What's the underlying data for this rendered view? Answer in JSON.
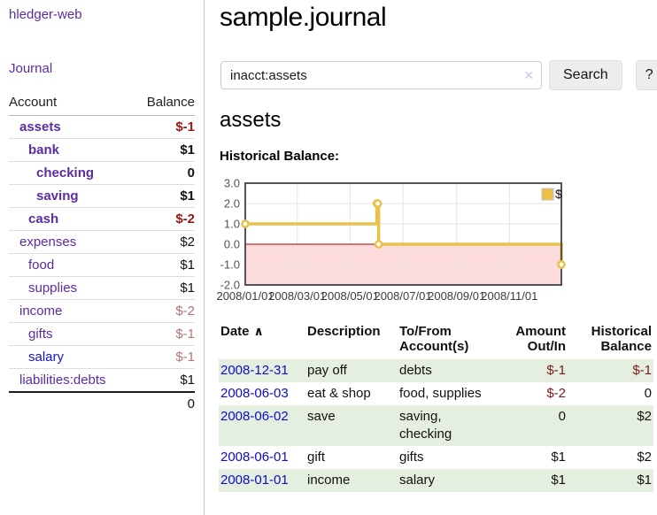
{
  "app": {
    "title": "hledger-web"
  },
  "sidebar": {
    "journal_link": "Journal",
    "table": {
      "account_header": "Account",
      "balance_header": "Balance",
      "rows": [
        {
          "account": "assets",
          "balance": "$-1",
          "indent": 1,
          "bold": true,
          "bal_class": "neg"
        },
        {
          "account": "bank",
          "balance": "$1",
          "indent": 2,
          "bold": true,
          "bal_class": ""
        },
        {
          "account": "checking",
          "balance": "0",
          "indent": 3,
          "bold": true,
          "bal_class": ""
        },
        {
          "account": "saving",
          "balance": "$1",
          "indent": 3,
          "bold": true,
          "bal_class": ""
        },
        {
          "account": "cash",
          "balance": "$-2",
          "indent": 2,
          "bold": true,
          "bal_class": "neg"
        },
        {
          "account": "expenses",
          "balance": "$2",
          "indent": 1,
          "bold": false,
          "bal_class": ""
        },
        {
          "account": "food",
          "balance": "$1",
          "indent": 2,
          "bold": false,
          "bal_class": ""
        },
        {
          "account": "supplies",
          "balance": "$1",
          "indent": 2,
          "bold": false,
          "bal_class": ""
        },
        {
          "account": "income",
          "balance": "$-2",
          "indent": 1,
          "bold": false,
          "bal_class": "dim"
        },
        {
          "account": "gifts",
          "balance": "$-1",
          "indent": 2,
          "bold": false,
          "bal_class": "dim"
        },
        {
          "account": "salary",
          "balance": "$-1",
          "indent": 2,
          "bold": false,
          "bal_class": "dim",
          "link_color": "blue"
        },
        {
          "account": "liabilities:debts",
          "balance": "$1",
          "indent": 1,
          "bold": false,
          "bal_class": ""
        }
      ],
      "total": "0"
    }
  },
  "main": {
    "title": "sample.journal",
    "search": {
      "value": "inacct:assets",
      "clear_icon": "✕",
      "search_label": "Search",
      "help_label": "?"
    },
    "account_heading": "assets",
    "chart_label": "Historical Balance:",
    "register": {
      "headers": [
        {
          "label": "Date",
          "align": "left",
          "sortable": true
        },
        {
          "label": "Description",
          "align": "left"
        },
        {
          "label": "To/From Account(s)",
          "align": "left"
        },
        {
          "label": "Amount Out/In",
          "align": "right"
        },
        {
          "label": "Historical Balance",
          "align": "right"
        }
      ],
      "sort_icon": "∧",
      "rows": [
        {
          "date": "2008-12-31",
          "description": "pay off",
          "accounts": "debts",
          "amount": "$-1",
          "amount_neg": true,
          "balance": "$-1",
          "balance_neg": true
        },
        {
          "date": "2008-06-03",
          "description": "eat & shop",
          "accounts": "food, supplies",
          "amount": "$-2",
          "amount_neg": true,
          "balance": "0",
          "balance_neg": false
        },
        {
          "date": "2008-06-02",
          "description": "save",
          "accounts": "saving, checking",
          "amount": "0",
          "amount_neg": false,
          "balance": "$2",
          "balance_neg": false
        },
        {
          "date": "2008-06-01",
          "description": "gift",
          "accounts": "gifts",
          "amount": "$1",
          "amount_neg": false,
          "balance": "$2",
          "balance_neg": false
        },
        {
          "date": "2008-01-01",
          "description": "income",
          "accounts": "salary",
          "amount": "$1",
          "amount_neg": false,
          "balance": "$1",
          "balance_neg": false
        }
      ]
    }
  },
  "chart_data": {
    "type": "line",
    "step": true,
    "title": "Historical Balance",
    "series": [
      {
        "name": "$",
        "color": "#e9c14a",
        "points": [
          [
            "2008-01-01",
            1
          ],
          [
            "2008-06-01",
            2
          ],
          [
            "2008-06-02",
            2
          ],
          [
            "2008-06-03",
            0
          ],
          [
            "2008-12-31",
            -1
          ]
        ]
      }
    ],
    "xlim": [
      "2008-01-01",
      "2008-12-31"
    ],
    "ylim": [
      -2,
      3
    ],
    "yticks": [
      3.0,
      2.0,
      1.0,
      0.0,
      -1.0,
      -2.0
    ],
    "xticks": [
      "2008/01/01",
      "2008/03/01",
      "2008/05/01",
      "2008/07/01",
      "2008/09/01",
      "2008/11/01"
    ],
    "grid": true,
    "legend": {
      "label": "$",
      "position": "top-right"
    },
    "colors": {
      "negative_region_fill": "#fbdbdb",
      "zero_line": "#a40000",
      "gridline": "#e4e4e4",
      "plot_border": "#545454",
      "axis_label": "#545454",
      "tick_label": "#3c3c3c"
    }
  }
}
